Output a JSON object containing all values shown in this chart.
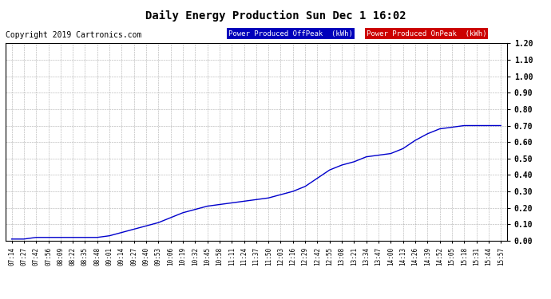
{
  "title": "Daily Energy Production Sun Dec 1 16:02",
  "copyright": "Copyright 2019 Cartronics.com",
  "legend_offpeak_label": "Power Produced OffPeak  (kWh)",
  "legend_onpeak_label": "Power Produced OnPeak  (kWh)",
  "legend_offpeak_bg": "#0000bb",
  "legend_onpeak_bg": "#cc0000",
  "legend_text_color": "#ffffff",
  "line_color": "#0000cc",
  "background_color": "#ffffff",
  "plot_bg_color": "#ffffff",
  "grid_color": "#999999",
  "ylim": [
    0.0,
    1.2
  ],
  "yticks": [
    0.0,
    0.1,
    0.2,
    0.3,
    0.4,
    0.5,
    0.6,
    0.7,
    0.8,
    0.9,
    1.0,
    1.1,
    1.2
  ],
  "x_labels": [
    "07:14",
    "07:27",
    "07:42",
    "07:56",
    "08:09",
    "08:22",
    "08:35",
    "08:48",
    "09:01",
    "09:14",
    "09:27",
    "09:40",
    "09:53",
    "10:06",
    "10:19",
    "10:32",
    "10:45",
    "10:58",
    "11:11",
    "11:24",
    "11:37",
    "11:50",
    "12:03",
    "12:16",
    "12:29",
    "12:42",
    "12:55",
    "13:08",
    "13:21",
    "13:34",
    "13:47",
    "14:00",
    "14:13",
    "14:26",
    "14:39",
    "14:52",
    "15:05",
    "15:18",
    "15:31",
    "15:44",
    "15:57"
  ],
  "y_values": [
    0.01,
    0.01,
    0.02,
    0.02,
    0.02,
    0.02,
    0.02,
    0.02,
    0.03,
    0.05,
    0.07,
    0.09,
    0.11,
    0.14,
    0.17,
    0.19,
    0.21,
    0.22,
    0.23,
    0.24,
    0.25,
    0.26,
    0.28,
    0.3,
    0.33,
    0.38,
    0.43,
    0.46,
    0.48,
    0.51,
    0.52,
    0.53,
    0.56,
    0.61,
    0.65,
    0.68,
    0.69,
    0.7,
    0.7,
    0.7,
    0.7
  ],
  "title_fontsize": 10,
  "copyright_fontsize": 7,
  "legend_fontsize": 6.5,
  "tick_fontsize": 7,
  "xtick_fontsize": 5.5
}
